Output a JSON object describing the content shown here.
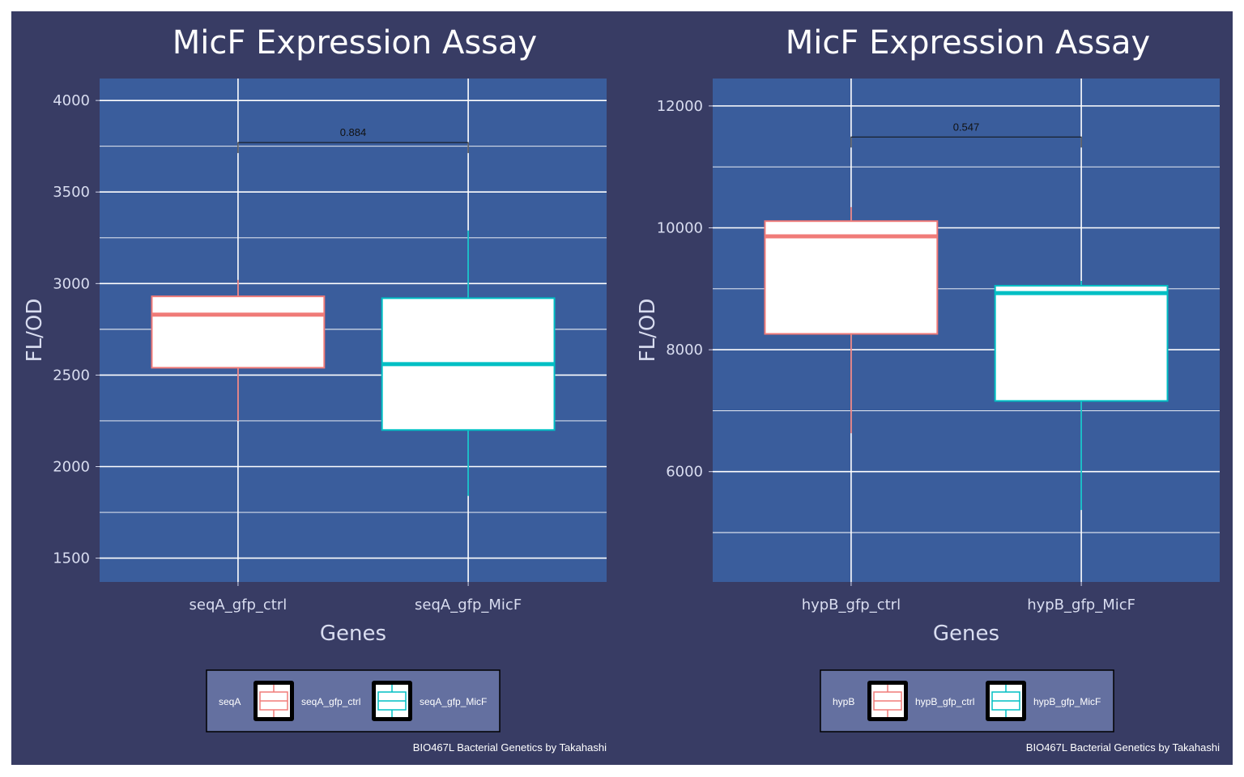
{
  "theme": {
    "outer_bg": "#383c64",
    "panel_bg": "#3a5d9c",
    "grid": "#ffffff",
    "box_fill": "#ffffff",
    "ctrl_color": "#f07b78",
    "micf_color": "#00bfc4",
    "legend_bg": "#6470a0"
  },
  "chart_data": [
    {
      "type": "box",
      "title": "MicF Expression Assay",
      "xlabel": "Genes",
      "ylabel": "FL/OD",
      "ylim": [
        1370,
        4120
      ],
      "yticks": [
        1500,
        2000,
        2500,
        3000,
        3500,
        4000
      ],
      "categories": [
        "seqA_gfp_ctrl",
        "seqA_gfp_MicF"
      ],
      "boxes": [
        {
          "name": "seqA_gfp_ctrl",
          "min": 2250,
          "q1": 2540,
          "median": 2830,
          "q3": 2930,
          "max": 3020
        },
        {
          "name": "seqA_gfp_MicF",
          "min": 1840,
          "q1": 2200,
          "median": 2560,
          "q3": 2920,
          "max": 3290
        }
      ],
      "comparison": {
        "label": "0.884",
        "y": 3770
      },
      "legend": {
        "title": "seqA",
        "entries": [
          "seqA_gfp_ctrl",
          "seqA_gfp_MicF"
        ],
        "position": "bottom"
      },
      "caption": "BIO467L Bacterial Genetics by Takahashi"
    },
    {
      "type": "box",
      "title": "MicF Expression Assay",
      "xlabel": "Genes",
      "ylabel": "FL/OD",
      "ylim": [
        4190,
        12450
      ],
      "yticks": [
        6000,
        8000,
        10000,
        12000
      ],
      "categories": [
        "hypB_gfp_ctrl",
        "hypB_gfp_MicF"
      ],
      "boxes": [
        {
          "name": "hypB_gfp_ctrl",
          "min": 6630,
          "q1": 8260,
          "median": 9860,
          "q3": 10110,
          "max": 10340
        },
        {
          "name": "hypB_gfp_MicF",
          "min": 5370,
          "q1": 7160,
          "median": 8930,
          "q3": 9050,
          "max": 9130
        }
      ],
      "comparison": {
        "label": "0.547",
        "y": 11490
      },
      "legend": {
        "title": "hypB",
        "entries": [
          "hypB_gfp_ctrl",
          "hypB_gfp_MicF"
        ],
        "position": "bottom"
      },
      "caption": "BIO467L Bacterial Genetics by Takahashi"
    }
  ]
}
